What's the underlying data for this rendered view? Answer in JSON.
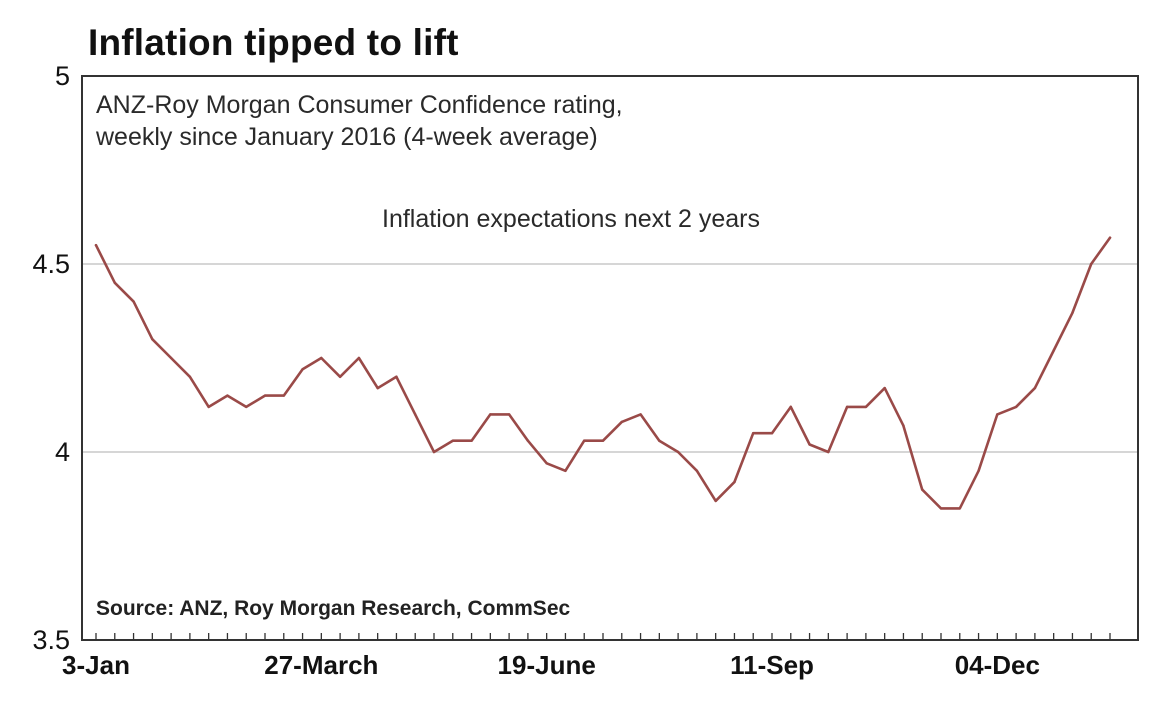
{
  "colors": {
    "line": "#9a4a48",
    "grid": "#c8c8c8",
    "frame": "#333333"
  },
  "chart_data": {
    "type": "line",
    "title": "Inflation tipped to lift",
    "subtitle_lines": [
      "ANZ-Roy Morgan Consumer Confidence rating,",
      "weekly since January 2016 (4-week average)"
    ],
    "annotation": "Inflation expectations next 2 years",
    "source": "Source: ANZ, Roy Morgan Research, CommSec",
    "ylim": [
      3.5,
      5
    ],
    "yticks": [
      3.5,
      4,
      4.5,
      5
    ],
    "ytick_labels": [
      "3.5",
      "4",
      "4.5",
      "5"
    ],
    "grid": "horizontal",
    "x_tick_labels": [
      {
        "week": 0,
        "label": "3-Jan"
      },
      {
        "week": 12,
        "label": "27-March"
      },
      {
        "week": 24,
        "label": "19-June"
      },
      {
        "week": 36,
        "label": "11-Sep"
      },
      {
        "week": 48,
        "label": "04-Dec"
      }
    ],
    "series": [
      {
        "values": [
          4.55,
          4.45,
          4.4,
          4.3,
          4.25,
          4.2,
          4.12,
          4.15,
          4.12,
          4.15,
          4.15,
          4.22,
          4.25,
          4.2,
          4.25,
          4.17,
          4.2,
          4.1,
          4.0,
          4.03,
          4.03,
          4.1,
          4.1,
          4.03,
          3.97,
          3.95,
          4.03,
          4.03,
          4.08,
          4.1,
          4.03,
          4.0,
          3.95,
          3.87,
          3.92,
          4.05,
          4.05,
          4.12,
          4.02,
          4.0,
          4.12,
          4.12,
          4.17,
          4.07,
          3.9,
          3.85,
          3.85,
          3.95,
          4.1,
          4.12,
          4.17,
          4.27,
          4.37,
          4.5,
          4.57
        ]
      }
    ]
  }
}
